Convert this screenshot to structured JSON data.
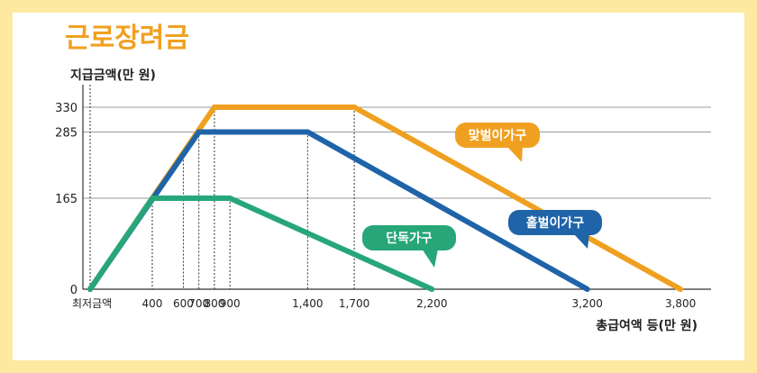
{
  "chart_data": {
    "type": "line",
    "title": "근로장려금",
    "ylabel": "지급금액(만 원)",
    "xlabel": "총급여액 등(만 원)",
    "x_ticks": [
      "최저금액",
      "400",
      "600",
      "700",
      "800",
      "900",
      "1,400",
      "1,700",
      "2,200",
      "3,200",
      "3,800"
    ],
    "y_ticks": [
      "0",
      "165",
      "285",
      "330"
    ],
    "xlim": [
      0,
      3800
    ],
    "ylim": [
      0,
      360
    ],
    "series": [
      {
        "name": "맞벌이가구",
        "color": "#f0a020",
        "points": [
          [
            0,
            0
          ],
          [
            800,
            330
          ],
          [
            1700,
            330
          ],
          [
            3800,
            0
          ]
        ]
      },
      {
        "name": "홑벌이가구",
        "color": "#1f64a8",
        "points": [
          [
            0,
            0
          ],
          [
            700,
            285
          ],
          [
            1400,
            285
          ],
          [
            3200,
            0
          ]
        ]
      },
      {
        "name": "단독가구",
        "color": "#27a679",
        "points": [
          [
            0,
            0
          ],
          [
            400,
            165
          ],
          [
            900,
            165
          ],
          [
            2200,
            0
          ]
        ]
      }
    ],
    "grid": false,
    "legend": "callouts"
  }
}
